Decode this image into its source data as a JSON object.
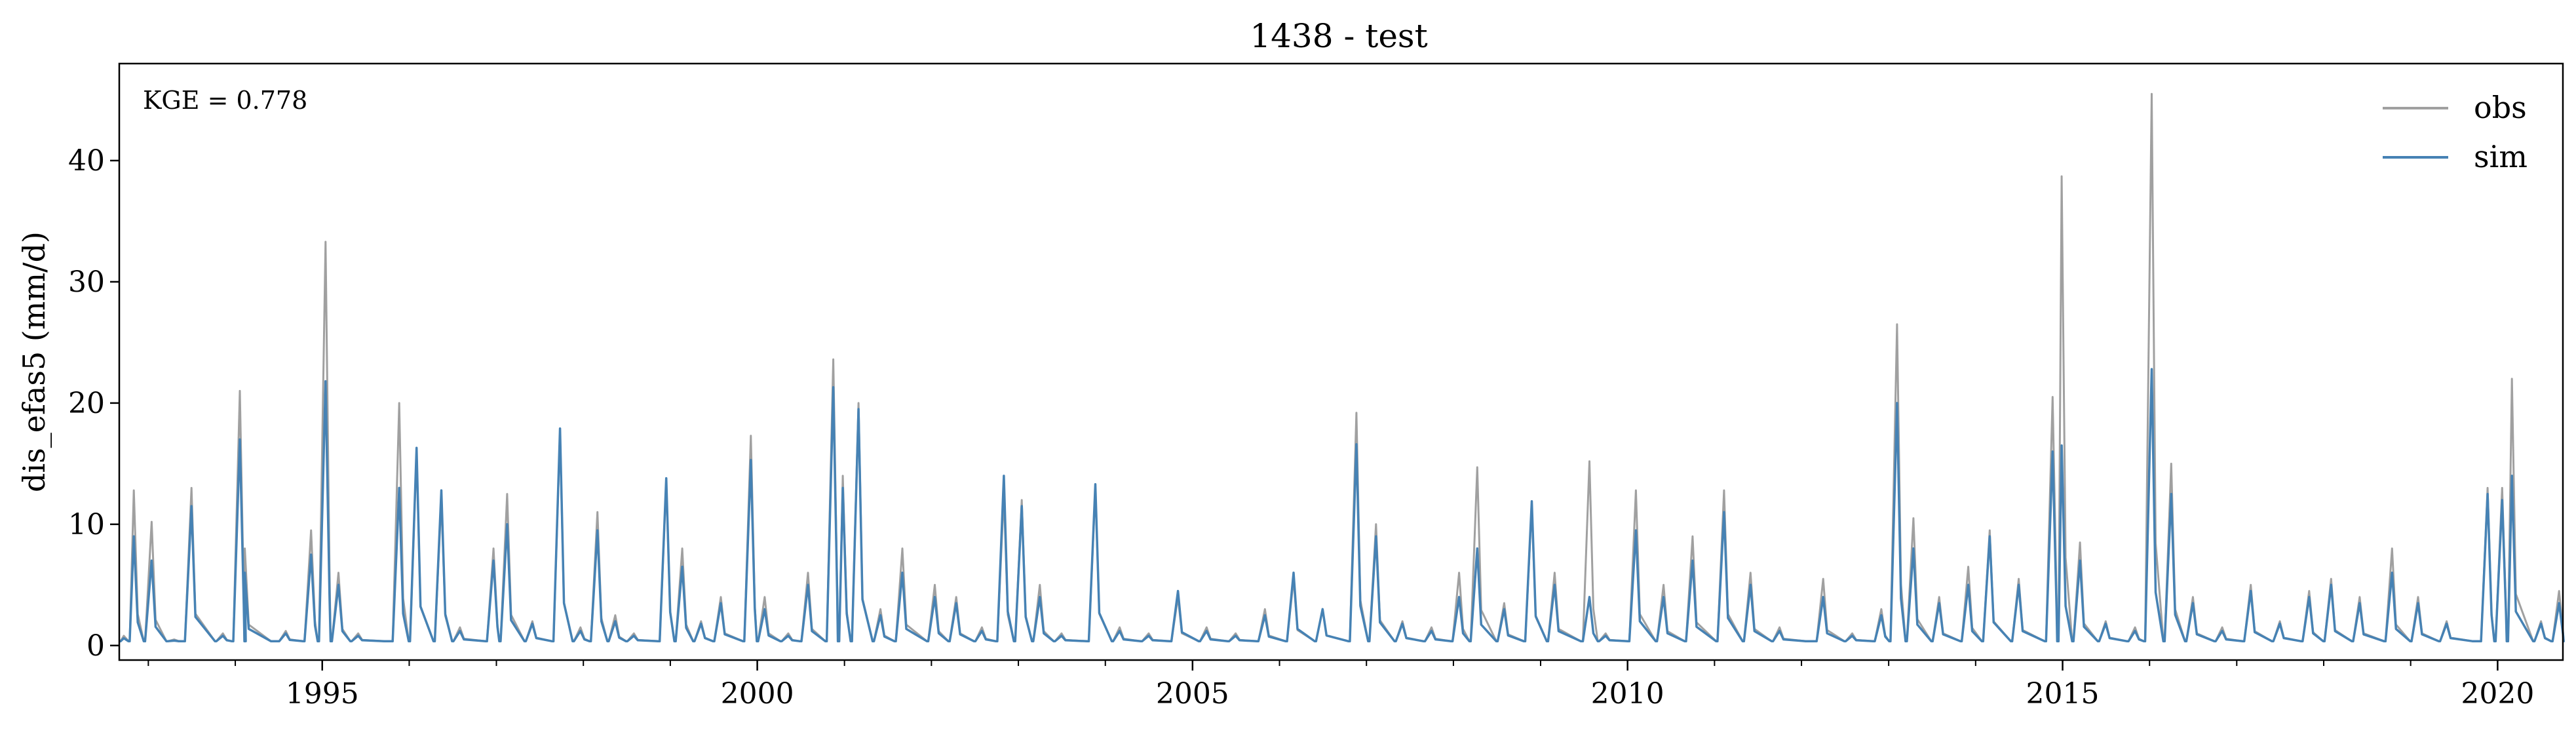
{
  "chart_data": {
    "type": "line",
    "title": "1438 - test",
    "xlabel": "",
    "ylabel": "dis_efas5 (mm/d)",
    "annotation": "KGE = 0.778",
    "legend_position": "top-right",
    "grid": false,
    "xlim": [
      "1992-09-01",
      "2020-10-01"
    ],
    "ylim": [
      -1.2,
      48
    ],
    "x_ticks": [
      {
        "label": "1995",
        "date": "1995-01-01"
      },
      {
        "label": "2000",
        "date": "2000-01-01"
      },
      {
        "label": "2005",
        "date": "2005-01-01"
      },
      {
        "label": "2010",
        "date": "2010-01-01"
      },
      {
        "label": "2015",
        "date": "2015-01-01"
      },
      {
        "label": "2020",
        "date": "2020-01-01"
      }
    ],
    "y_ticks": [
      0,
      10,
      20,
      30,
      40
    ],
    "series": [
      {
        "name": "obs",
        "color": "#a0a0a0",
        "x": [
          "1992-09-20",
          "1992-11-01",
          "1993-01-15",
          "1993-04-20",
          "1993-07-01",
          "1993-11-10",
          "1994-01-20",
          "1994-02-10",
          "1994-08-01",
          "1994-11-15",
          "1995-01-15",
          "1995-03-10",
          "1995-06-01",
          "1995-11-20",
          "1996-02-01",
          "1996-05-15",
          "1996-08-01",
          "1996-12-20",
          "1997-02-15",
          "1997-06-01",
          "1997-09-25",
          "1997-12-20",
          "1998-03-01",
          "1998-05-15",
          "1998-08-01",
          "1998-12-15",
          "1999-02-20",
          "1999-05-10",
          "1999-08-01",
          "1999-12-05",
          "2000-02-01",
          "2000-05-10",
          "2000-08-01",
          "2000-11-15",
          "2000-12-25",
          "2001-03-01",
          "2001-06-01",
          "2001-09-01",
          "2002-01-15",
          "2002-04-15",
          "2002-08-01",
          "2002-11-01",
          "2003-01-15",
          "2003-04-01",
          "2003-07-01",
          "2003-11-20",
          "2004-03-01",
          "2004-07-01",
          "2004-11-01",
          "2005-03-01",
          "2005-07-01",
          "2005-11-01",
          "2006-03-01",
          "2006-07-01",
          "2006-11-20",
          "2007-02-10",
          "2007-06-01",
          "2007-10-01",
          "2008-01-25",
          "2008-04-10",
          "2008-08-01",
          "2008-11-25",
          "2009-03-01",
          "2009-07-25",
          "2009-10-01",
          "2010-02-05",
          "2010-06-01",
          "2010-10-01",
          "2011-02-10",
          "2011-06-01",
          "2011-10-01",
          "2012-04-01",
          "2012-08-01",
          "2012-12-01",
          "2013-02-05",
          "2013-04-15",
          "2013-08-01",
          "2013-12-01",
          "2014-03-01",
          "2014-07-01",
          "2014-11-20",
          "2014-12-28",
          "2015-03-15",
          "2015-07-01",
          "2015-11-01",
          "2016-01-10",
          "2016-04-01",
          "2016-07-01",
          "2016-11-01",
          "2017-03-01",
          "2017-07-01",
          "2017-11-01",
          "2018-02-01",
          "2018-06-01",
          "2018-10-15",
          "2019-02-01",
          "2019-06-01",
          "2019-11-20",
          "2020-01-20",
          "2020-03-01",
          "2020-07-01",
          "2020-09-15"
        ],
        "y": [
          0.8,
          12.8,
          10.2,
          0.5,
          13.0,
          1.0,
          21.0,
          8.0,
          1.2,
          9.5,
          33.3,
          6.0,
          1.0,
          20.0,
          16.0,
          12.0,
          1.5,
          8.0,
          12.5,
          2.0,
          17.5,
          1.5,
          11.0,
          2.5,
          1.0,
          13.5,
          8.0,
          2.0,
          4.0,
          17.3,
          4.0,
          1.0,
          6.0,
          23.6,
          14.0,
          20.0,
          3.0,
          8.0,
          5.0,
          4.0,
          1.5,
          12.5,
          12.0,
          5.0,
          1.0,
          13.0,
          1.5,
          1.0,
          4.0,
          1.5,
          1.0,
          3.0,
          5.5,
          3.0,
          19.2,
          10.0,
          2.0,
          1.5,
          6.0,
          14.7,
          3.5,
          11.5,
          6.0,
          15.2,
          1.0,
          12.8,
          5.0,
          9.0,
          12.8,
          6.0,
          1.5,
          5.5,
          1.0,
          3.0,
          26.5,
          10.5,
          4.0,
          6.5,
          9.5,
          5.5,
          20.5,
          38.7,
          8.5,
          2.0,
          1.5,
          45.5,
          15.0,
          4.0,
          1.5,
          5.0,
          2.0,
          4.5,
          5.5,
          4.0,
          8.0,
          4.0,
          2.0,
          13.0,
          13.0,
          22.0,
          2.0,
          4.5
        ]
      },
      {
        "name": "sim",
        "color": "#4682b4",
        "x": [
          "1992-09-20",
          "1992-11-01",
          "1993-01-15",
          "1993-04-20",
          "1993-07-01",
          "1993-11-10",
          "1994-01-20",
          "1994-02-10",
          "1994-08-01",
          "1994-11-15",
          "1995-01-15",
          "1995-03-10",
          "1995-06-01",
          "1995-11-20",
          "1996-02-01",
          "1996-05-15",
          "1996-08-01",
          "1996-12-20",
          "1997-02-15",
          "1997-06-01",
          "1997-09-25",
          "1997-12-20",
          "1998-03-01",
          "1998-05-15",
          "1998-08-01",
          "1998-12-15",
          "1999-02-20",
          "1999-05-10",
          "1999-08-01",
          "1999-12-05",
          "2000-02-01",
          "2000-05-10",
          "2000-08-01",
          "2000-11-15",
          "2000-12-25",
          "2001-03-01",
          "2001-06-01",
          "2001-09-01",
          "2002-01-15",
          "2002-04-15",
          "2002-08-01",
          "2002-11-01",
          "2003-01-15",
          "2003-04-01",
          "2003-07-01",
          "2003-11-20",
          "2004-03-01",
          "2004-07-01",
          "2004-11-01",
          "2005-03-01",
          "2005-07-01",
          "2005-11-01",
          "2006-03-01",
          "2006-07-01",
          "2006-11-20",
          "2007-02-10",
          "2007-06-01",
          "2007-10-01",
          "2008-01-25",
          "2008-04-10",
          "2008-08-01",
          "2008-11-25",
          "2009-03-01",
          "2009-07-25",
          "2009-10-01",
          "2010-02-05",
          "2010-06-01",
          "2010-10-01",
          "2011-02-10",
          "2011-06-01",
          "2011-10-01",
          "2012-04-01",
          "2012-08-01",
          "2012-12-01",
          "2013-02-05",
          "2013-04-15",
          "2013-08-01",
          "2013-12-01",
          "2014-03-01",
          "2014-07-01",
          "2014-11-20",
          "2014-12-28",
          "2015-03-15",
          "2015-07-01",
          "2015-11-01",
          "2016-01-10",
          "2016-04-01",
          "2016-07-01",
          "2016-11-01",
          "2017-03-01",
          "2017-07-01",
          "2017-11-01",
          "2018-02-01",
          "2018-06-01",
          "2018-10-15",
          "2019-02-01",
          "2019-06-01",
          "2019-11-20",
          "2020-01-20",
          "2020-03-01",
          "2020-07-01",
          "2020-09-15"
        ],
        "y": [
          0.6,
          9.0,
          7.0,
          0.4,
          11.5,
          0.8,
          17.0,
          6.0,
          1.0,
          7.5,
          21.8,
          5.0,
          0.8,
          13.0,
          16.3,
          12.8,
          1.2,
          7.0,
          10.0,
          1.8,
          17.9,
          1.2,
          9.5,
          2.0,
          0.8,
          13.8,
          6.5,
          1.8,
          3.5,
          15.3,
          3.0,
          0.8,
          5.0,
          21.3,
          13.0,
          19.5,
          2.5,
          6.0,
          4.0,
          3.5,
          1.2,
          14.0,
          11.5,
          4.0,
          0.8,
          13.3,
          1.2,
          0.8,
          4.5,
          1.2,
          0.8,
          2.5,
          6.0,
          3.0,
          16.6,
          9.0,
          1.8,
          1.2,
          4.0,
          8.0,
          3.0,
          11.9,
          5.0,
          4.0,
          0.8,
          9.5,
          4.0,
          7.0,
          11.0,
          5.0,
          1.2,
          4.0,
          0.8,
          2.5,
          20.0,
          8.0,
          3.5,
          5.0,
          9.0,
          5.0,
          16.0,
          16.5,
          7.0,
          1.8,
          1.2,
          22.8,
          12.5,
          3.5,
          1.2,
          4.5,
          1.8,
          4.0,
          5.0,
          3.5,
          6.0,
          3.5,
          1.8,
          12.5,
          12.0,
          14.0,
          1.8,
          3.5
        ]
      }
    ]
  }
}
